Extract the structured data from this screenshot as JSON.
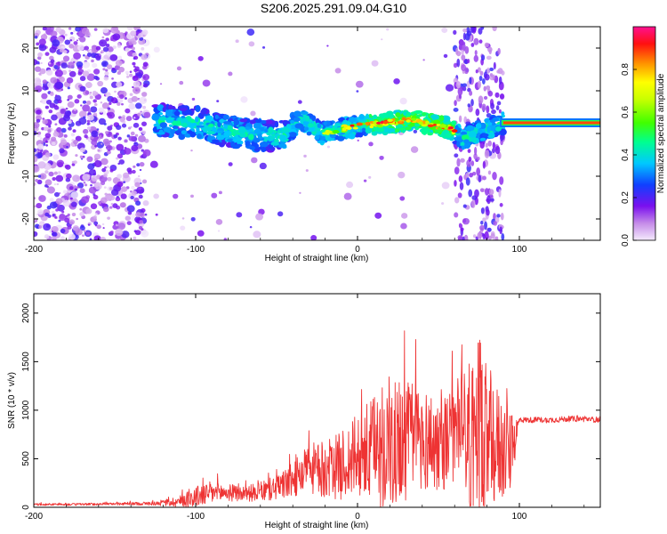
{
  "title": "S206.2025.291.09.04.G10",
  "chart_data": [
    {
      "type": "heatmap",
      "name": "spectrogram",
      "xlabel": "Height of straight line (km)",
      "ylabel": "Frequency (Hz)",
      "xlim": [
        -200,
        150
      ],
      "ylim": [
        -25,
        25
      ],
      "xticks": [
        -200,
        -100,
        0,
        100
      ],
      "yticks": [
        -20,
        -10,
        0,
        10,
        20
      ],
      "colorbar": {
        "label": "Normalized spectral amplitude",
        "range": [
          0,
          1
        ],
        "ticks": [
          0.0,
          0.2,
          0.4,
          0.6,
          0.8
        ]
      },
      "ridge_points": [
        {
          "x": -120,
          "y": 3
        },
        {
          "x": -100,
          "y": 2.5
        },
        {
          "x": -80,
          "y": 0.5
        },
        {
          "x": -60,
          "y": -0.5
        },
        {
          "x": -45,
          "y": -0.5
        },
        {
          "x": -35,
          "y": 3.5
        },
        {
          "x": -22,
          "y": 0
        },
        {
          "x": -10,
          "y": 1
        },
        {
          "x": 5,
          "y": 2
        },
        {
          "x": 20,
          "y": 2.5
        },
        {
          "x": 35,
          "y": 3.5
        },
        {
          "x": 45,
          "y": 2
        },
        {
          "x": 55,
          "y": 1.5
        },
        {
          "x": 65,
          "y": -1
        },
        {
          "x": 90,
          "y": 2.5
        },
        {
          "x": 120,
          "y": 2.5
        },
        {
          "x": 150,
          "y": 2.5
        }
      ]
    },
    {
      "type": "line",
      "name": "snr",
      "xlabel": "Height of straight line (km)",
      "ylabel": "SNR (10 * v/v)",
      "xlim": [
        -200,
        150
      ],
      "ylim": [
        0,
        2200
      ],
      "xticks": [
        -200,
        -100,
        0,
        100
      ],
      "yticks": [
        0,
        500,
        1000,
        1500,
        2000
      ],
      "color": "#ee3333",
      "series": [
        {
          "name": "SNR",
          "x": [
            -200,
            -175,
            -150,
            -125,
            -110,
            -100,
            -90,
            -80,
            -70,
            -60,
            -50,
            -40,
            -30,
            -20,
            -10,
            0,
            10,
            20,
            30,
            40,
            50,
            55,
            60,
            65,
            70,
            75,
            80,
            85,
            90,
            95,
            100,
            110,
            120,
            130,
            140,
            150
          ],
          "baseline": [
            30,
            30,
            35,
            40,
            60,
            110,
            150,
            150,
            140,
            160,
            200,
            280,
            400,
            380,
            430,
            520,
            560,
            650,
            700,
            700,
            650,
            680,
            750,
            850,
            700,
            800,
            700,
            650,
            600,
            550,
            900,
            900,
            900,
            910,
            910,
            900
          ],
          "amplitude": [
            10,
            12,
            12,
            20,
            60,
            110,
            120,
            90,
            80,
            100,
            130,
            180,
            260,
            300,
            350,
            450,
            600,
            700,
            650,
            550,
            500,
            500,
            500,
            650,
            900,
            950,
            800,
            650,
            550,
            400,
            30,
            30,
            30,
            30,
            30,
            30
          ]
        }
      ]
    }
  ]
}
